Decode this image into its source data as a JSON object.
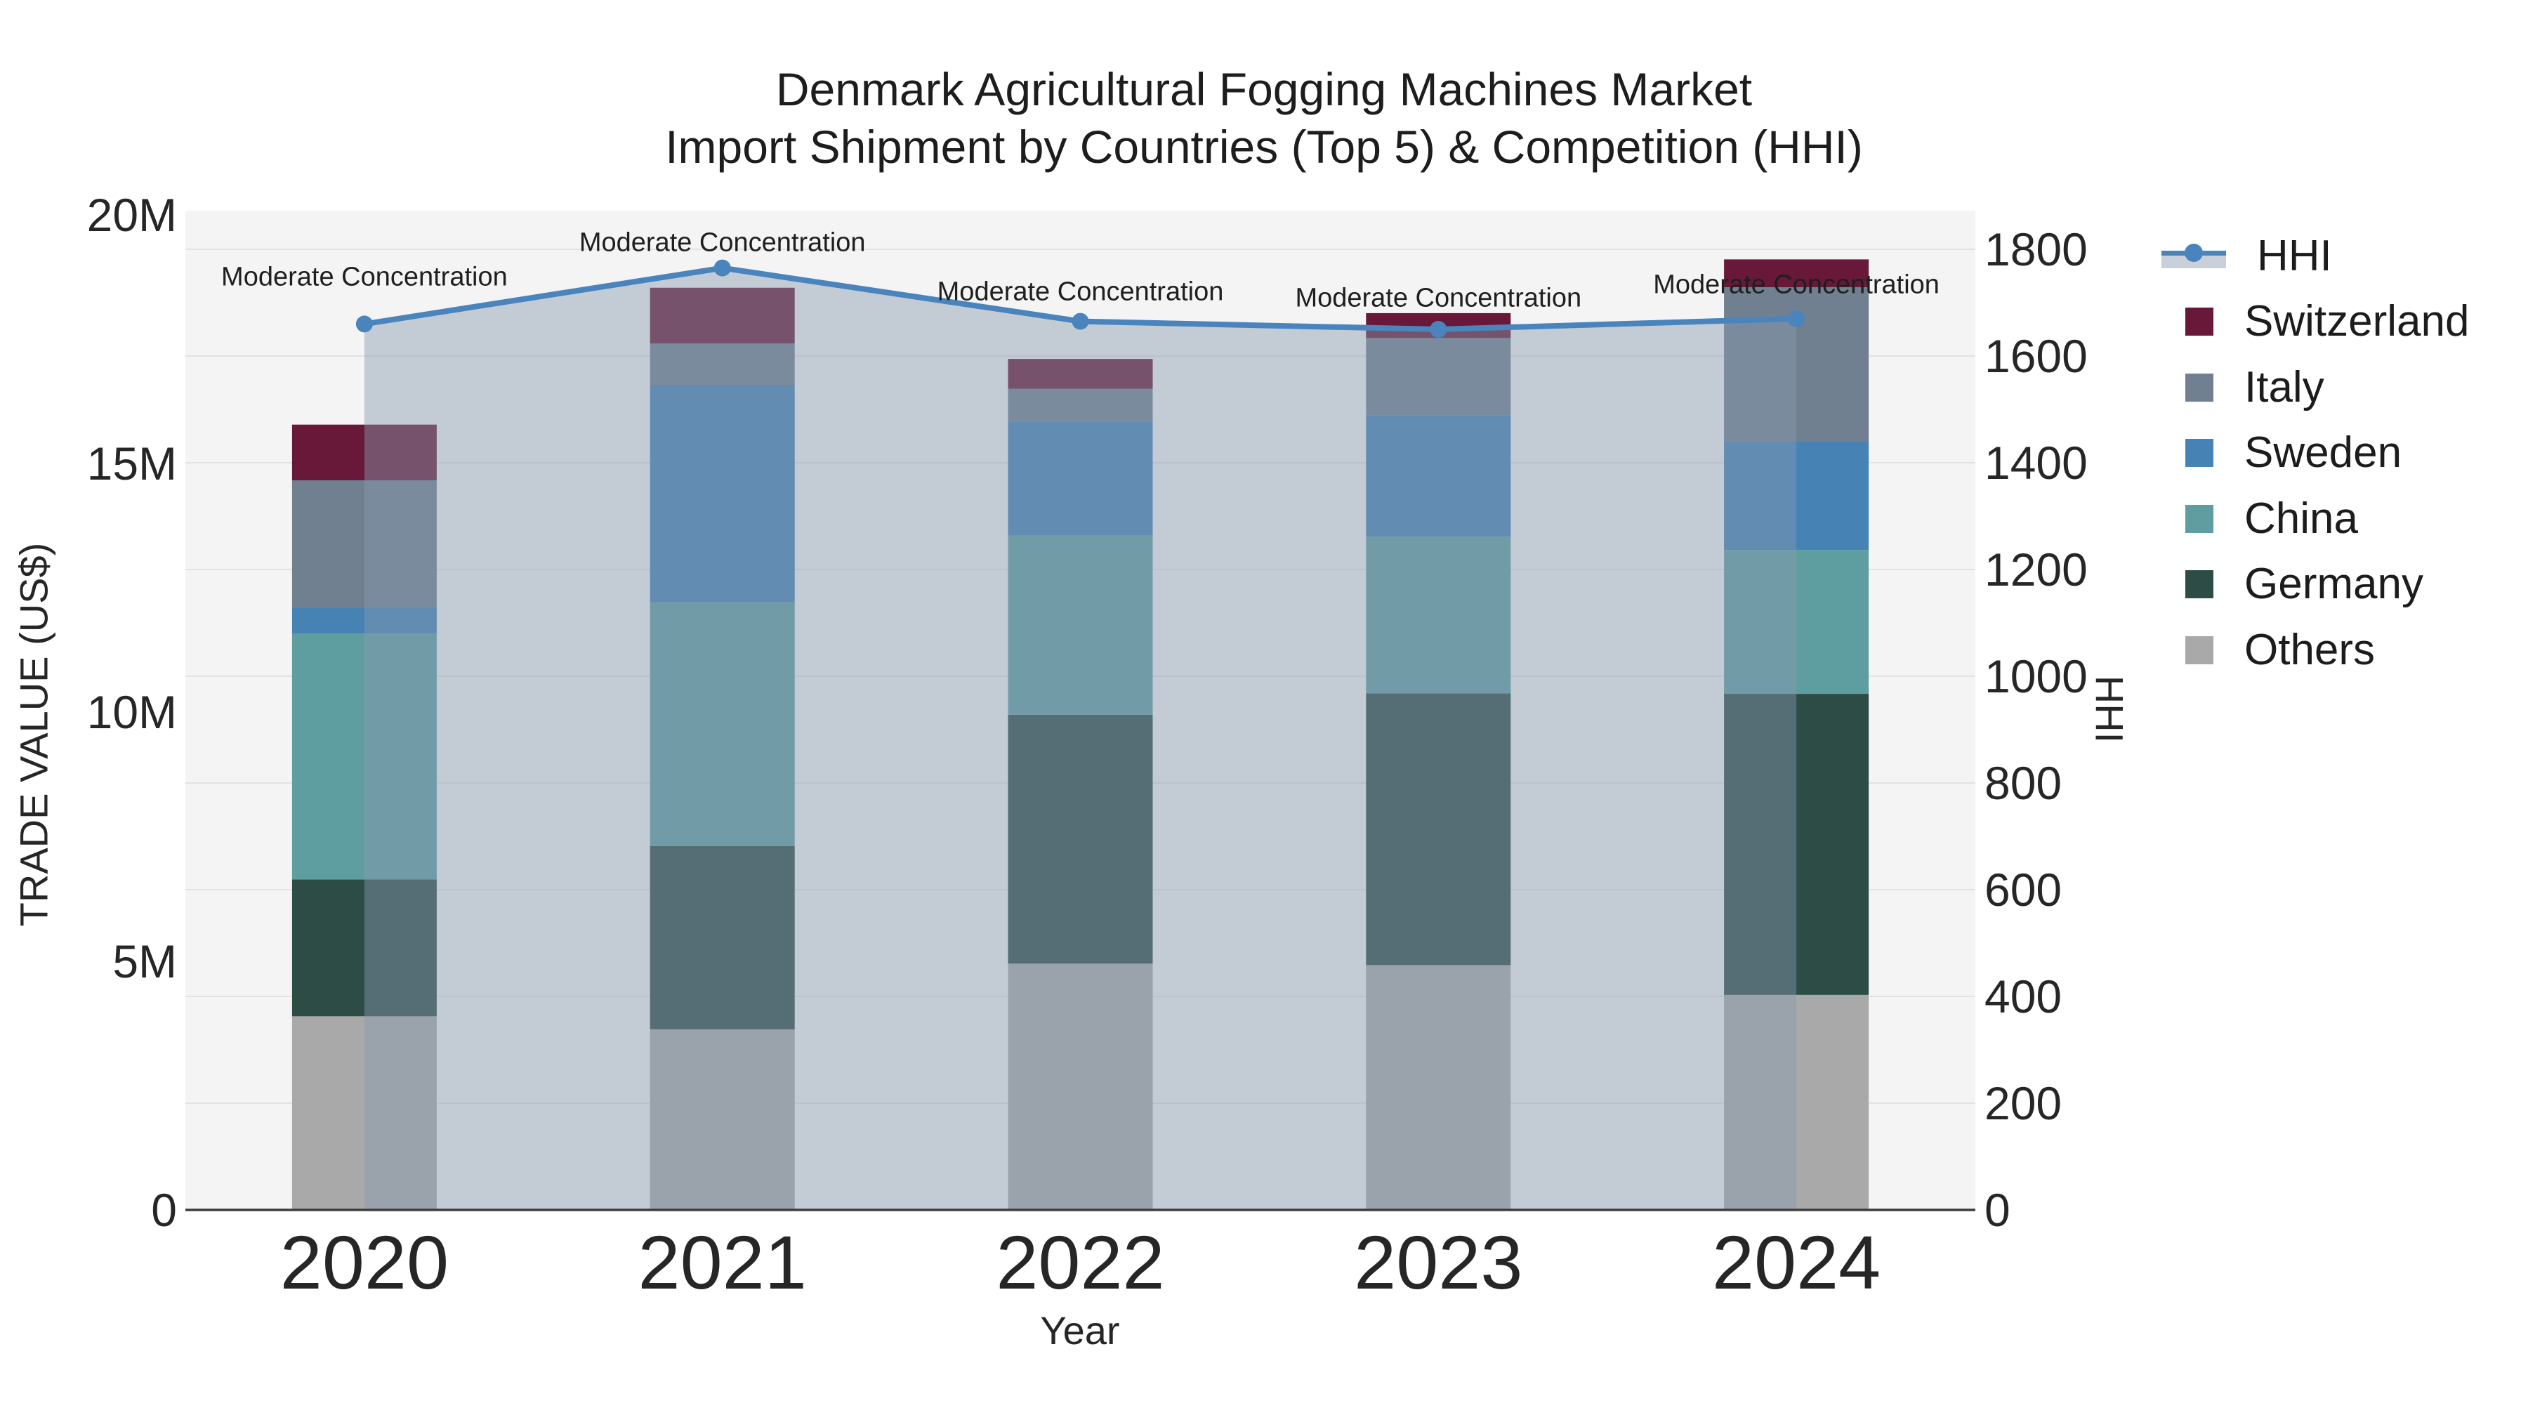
{
  "title": {
    "line1": "Denmark Agricultural Fogging Machines Market",
    "line2": "Import Shipment by Countries (Top 5) & Competition (HHI)"
  },
  "axes": {
    "x": {
      "title": "Year",
      "categories": [
        "2020",
        "2021",
        "2022",
        "2023",
        "2024"
      ]
    },
    "y_left": {
      "title": "TRADE VALUE (US$)",
      "tick_labels": [
        "0",
        "5M",
        "10M",
        "15M",
        "20M"
      ],
      "tick_values": [
        0,
        5,
        10,
        15,
        20
      ]
    },
    "y_right": {
      "title": "HHI",
      "tick_min": 0,
      "tick_max": 1800,
      "tick_step": 200
    }
  },
  "legend": {
    "items": [
      {
        "name": "HHI",
        "type": "line",
        "color": "#4a84bd",
        "band": "#c9d0da"
      },
      {
        "name": "Switzerland",
        "type": "swatch",
        "color": "#681838"
      },
      {
        "name": "Italy",
        "type": "swatch",
        "color": "#708090"
      },
      {
        "name": "Sweden",
        "type": "swatch",
        "color": "#4682b4"
      },
      {
        "name": "China",
        "type": "swatch",
        "color": "#5f9ea0"
      },
      {
        "name": "Germany",
        "type": "swatch",
        "color": "#2d4c46"
      },
      {
        "name": "Others",
        "type": "swatch",
        "color": "#a9a9a9"
      }
    ]
  },
  "chart_data": {
    "type": "bar+line",
    "title": "Denmark Agricultural Fogging Machines Market Import Shipment by Countries (Top 5) & Competition (HHI)",
    "categories": [
      "2020",
      "2021",
      "2022",
      "2023",
      "2024"
    ],
    "value_unit": "million US$",
    "ylabel_left": "TRADE VALUE (US$)",
    "ylabel_right": "HHI",
    "ylim_left": [
      0,
      20
    ],
    "ylim_right": [
      0,
      1870
    ],
    "grid": "horizontal",
    "legend_position": "right",
    "series": [
      {
        "name": "Others",
        "color": "#a9a9a9",
        "values": [
          3.89,
          3.63,
          4.95,
          4.92,
          4.32
        ]
      },
      {
        "name": "Germany",
        "color": "#2d4c46",
        "values": [
          2.75,
          3.68,
          5.0,
          5.46,
          6.05
        ]
      },
      {
        "name": "China",
        "color": "#5f9ea0",
        "values": [
          4.94,
          4.9,
          3.6,
          3.15,
          2.89
        ]
      },
      {
        "name": "Sweden",
        "color": "#4682b4",
        "values": [
          0.52,
          4.37,
          2.3,
          2.44,
          2.19
        ]
      },
      {
        "name": "Italy",
        "color": "#708090",
        "values": [
          2.56,
          0.83,
          0.65,
          1.55,
          3.09
        ]
      },
      {
        "name": "Switzerland",
        "color": "#681838",
        "values": [
          1.12,
          1.12,
          0.6,
          0.5,
          0.56
        ]
      }
    ],
    "totals": [
      15.78,
      18.53,
      17.1,
      18.02,
      19.1
    ],
    "hhi": {
      "name": "HHI",
      "values": [
        1660,
        1765,
        1665,
        1650,
        1670
      ],
      "color": "#4a84bd",
      "area_fill": "rgba(136,152,176,0.45)",
      "annotation_text": "Moderate Concentration"
    }
  }
}
